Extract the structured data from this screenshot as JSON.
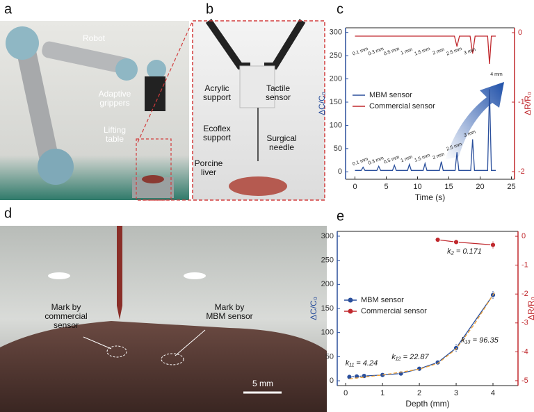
{
  "panels": {
    "a": {
      "letter": "a",
      "labels": [
        [
          "Robot"
        ],
        [
          "Adaptive",
          "grippers"
        ],
        [
          "Lifting",
          "table"
        ]
      ]
    },
    "b": {
      "letter": "b",
      "labels": [
        [
          "Acrylic",
          "support"
        ],
        [
          "Tactile",
          "sensor"
        ],
        [
          "Ecoflex",
          "support"
        ],
        [
          "Surgical",
          "needle"
        ],
        [
          "Porcine",
          "liver"
        ]
      ]
    },
    "c": {
      "letter": "c"
    },
    "d": {
      "letter": "d",
      "labels": [
        [
          "Mark by",
          "commercial",
          "sensor"
        ],
        [
          "Mark by",
          "MBM sensor"
        ]
      ],
      "scale_bar": "5 mm"
    },
    "e": {
      "letter": "e"
    }
  },
  "chart_data": [
    {
      "type": "line",
      "xlabel": "Time (s)",
      "ylabel": "ΔC/C₀",
      "y2label": "ΔR/R₀",
      "xlim": [
        -1.5,
        25.5
      ],
      "xticks": [
        0,
        5,
        10,
        15,
        20,
        25
      ],
      "ylim": [
        -16,
        310
      ],
      "yticks": [
        0,
        50,
        100,
        150,
        200,
        250,
        300
      ],
      "y2lim": [
        -2.11,
        0.07
      ],
      "y2ticks": [
        0,
        -1,
        -2
      ],
      "legend": "center left",
      "series": [
        {
          "name": "MBM sensor",
          "color": "#2a4f9c",
          "x": [
            0,
            1.0,
            1.3,
            1.6,
            3.5,
            3.8,
            4.1,
            6.0,
            6.3,
            6.6,
            8.4,
            8.7,
            9.0,
            10.9,
            11.2,
            11.5,
            13.5,
            13.8,
            14.1,
            16.0,
            16.3,
            16.6,
            18.5,
            18.8,
            19.1,
            21.2,
            21.5,
            21.8,
            22.5
          ],
          "values": [
            3,
            3,
            10,
            3,
            3,
            12,
            3,
            3,
            14,
            3,
            3,
            16,
            3,
            3,
            18,
            3,
            3,
            22,
            3,
            3,
            42,
            3,
            3,
            70,
            3,
            3,
            178,
            3,
            3
          ]
        },
        {
          "name": "Commercial sensor",
          "color": "#c0282d",
          "axis": "y2",
          "x": [
            0,
            15.9,
            16.3,
            16.7,
            18.4,
            18.8,
            19.2,
            21.2,
            21.5,
            21.8,
            22.5
          ],
          "values": [
            -0.05,
            -0.05,
            -0.2,
            -0.05,
            -0.05,
            -0.3,
            -0.05,
            -0.05,
            -0.45,
            -0.05,
            -0.05
          ]
        }
      ],
      "mbm_labels": [
        "0.1 mm",
        "0.3 mm",
        "0.5 mm",
        "1 mm",
        "1.5 mm",
        "2 mm",
        "2.5 mm",
        "3 mm",
        "4 mm"
      ],
      "commercial_labels": [
        "0.1 mm",
        "0.3 mm",
        "0.5 mm",
        "1 mm",
        "1.5 mm",
        "2 mm",
        "2.5 mm",
        "3 mm"
      ]
    },
    {
      "type": "scatter",
      "xlabel": "Depth (mm)",
      "ylabel": "ΔC/C₀",
      "y2label": "ΔR/R₀",
      "xlim": [
        -0.23,
        4.68
      ],
      "xticks": [
        0,
        1,
        2,
        3,
        4
      ],
      "ylim": [
        -10,
        310
      ],
      "yticks": [
        0,
        50,
        100,
        150,
        200,
        250,
        300
      ],
      "y2lim": [
        -5.17,
        0.17
      ],
      "y2ticks": [
        0,
        -1,
        -2,
        -3,
        -4,
        -5
      ],
      "legend": "center left",
      "series": [
        {
          "name": "MBM sensor",
          "color": "#2a4f9c",
          "x": [
            0.1,
            0.3,
            0.5,
            1,
            1.5,
            2,
            2.5,
            3,
            4
          ],
          "values": [
            8,
            9,
            10,
            12,
            15,
            25,
            38,
            68,
            178
          ],
          "errors": [
            1,
            1,
            1,
            1,
            1,
            2,
            2,
            8,
            8
          ]
        },
        {
          "name": "Commercial sensor",
          "color": "#c0282d",
          "axis": "y2",
          "x": [
            2.5,
            3,
            4
          ],
          "values": [
            -0.12,
            -0.2,
            -0.3
          ],
          "errors": [
            0.03,
            0.03,
            0.12
          ]
        },
        {
          "color": "#f0a030",
          "dash": true,
          "x": [
            0.1,
            1,
            2,
            2.5,
            3,
            3.5,
            4.05
          ],
          "values": [
            4,
            12,
            24,
            36,
            66,
            118,
            184
          ]
        }
      ],
      "annotations": [
        "k₁₁ = 4.24",
        "k₁₂ = 22.87",
        "k₁₃ = 96.35",
        "k₂ = 0.171"
      ]
    }
  ]
}
